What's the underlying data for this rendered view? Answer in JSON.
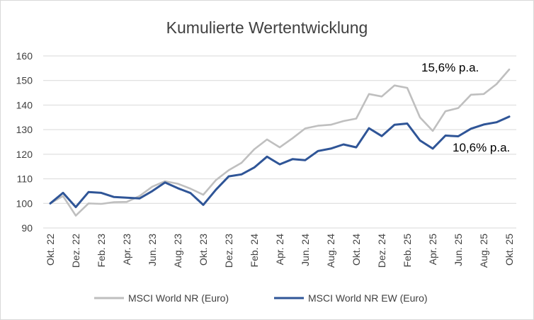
{
  "chart_data": {
    "type": "line",
    "title": "Kumulierte Wertentwicklung",
    "ylim": [
      90,
      160
    ],
    "yticks": [
      90,
      100,
      110,
      120,
      130,
      140,
      150,
      160
    ],
    "grid": "horizontal",
    "legend_position": "bottom",
    "categories": [
      "Okt. 22",
      "Nov. 22",
      "Dez. 22",
      "Jan. 23",
      "Feb. 23",
      "Mär. 23",
      "Apr. 23",
      "Mai. 23",
      "Jun. 23",
      "Jul. 23",
      "Aug. 23",
      "Sep. 23",
      "Okt. 23",
      "Nov. 23",
      "Dez. 23",
      "Jan. 24",
      "Feb. 24",
      "Mär. 24",
      "Apr. 24",
      "Mai. 24",
      "Jun. 24",
      "Jul. 24",
      "Aug. 24",
      "Sep. 24",
      "Okt. 24",
      "Nov. 24",
      "Dez. 24",
      "Jan. 25",
      "Feb. 25",
      "Mär. 25",
      "Apr. 25",
      "Mai. 25",
      "Jun. 25",
      "Jul. 25",
      "Aug. 25",
      "Sep. 25",
      "Okt. 25"
    ],
    "tick_labels": [
      "Okt. 22",
      "Dez. 22",
      "Feb. 23",
      "Apr. 23",
      "Jun. 23",
      "Aug. 23",
      "Okt. 23",
      "Dez. 23",
      "Feb. 24",
      "Apr. 24",
      "Jun. 24",
      "Aug. 24",
      "Okt. 24",
      "Dez. 24",
      "Feb. 25",
      "Apr. 25",
      "Jun. 25",
      "Aug. 25",
      "Okt. 25"
    ],
    "series": [
      {
        "name": "MSCI World NR (Euro)",
        "color": "#bfbfbf",
        "values": [
          100,
          103,
          95,
          100,
          99.8,
          100.5,
          100.6,
          103,
          106.8,
          109,
          108,
          106,
          103.5,
          109.5,
          113.5,
          116.5,
          122,
          126,
          122.8,
          126.5,
          130.5,
          131.6,
          132,
          133.5,
          134.5,
          144.5,
          143.5,
          148,
          147,
          135,
          129.5,
          137.5,
          138.8,
          144.2,
          144.5,
          148.5,
          154.5
        ]
      },
      {
        "name": "MSCI World NR EW (Euro)",
        "color": "#2f5597",
        "values": [
          100,
          104.3,
          98.5,
          104.6,
          104.3,
          102.6,
          102.3,
          102,
          105,
          108.5,
          106.2,
          104.2,
          99.4,
          105.6,
          111,
          111.8,
          114.6,
          119,
          115.9,
          118,
          117.6,
          121.3,
          122.3,
          124,
          122.8,
          130.6,
          127.4,
          132,
          132.5,
          125.6,
          122.3,
          127.6,
          127.3,
          130.4,
          132.1,
          133,
          135.3
        ]
      }
    ],
    "annotations": [
      "15,6% p.a.",
      "10,6% p.a."
    ]
  }
}
